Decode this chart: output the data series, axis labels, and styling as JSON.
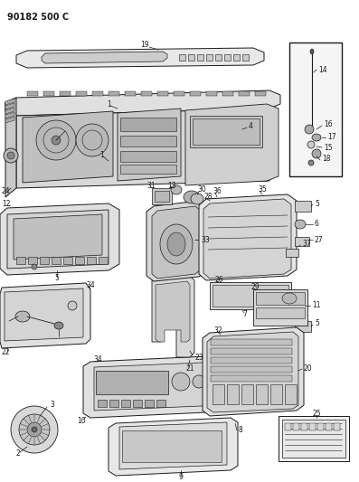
{
  "title": "90182 500 C",
  "bg_color": "#ffffff",
  "lc": "#1a1a1a",
  "fig_width": 3.97,
  "fig_height": 5.33,
  "dpi": 100
}
